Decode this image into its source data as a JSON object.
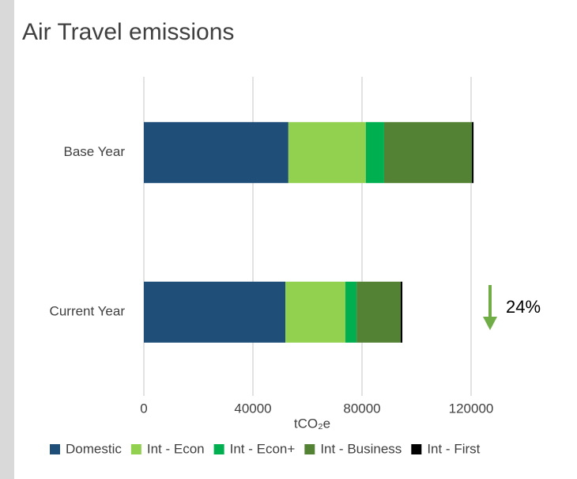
{
  "chart_data": {
    "type": "stacked-barh",
    "title": "Air Travel emissions",
    "categories": [
      "Base Year",
      "Current Year"
    ],
    "series": [
      {
        "name": "Domestic",
        "color": "#1f4e79",
        "values": [
          53000,
          51900
        ]
      },
      {
        "name": "Int - Econ",
        "color": "#92d050",
        "values": [
          28400,
          22000
        ]
      },
      {
        "name": "Int - Econ+",
        "color": "#00b050",
        "values": [
          6700,
          4100
        ]
      },
      {
        "name": "Int - Business",
        "color": "#548235",
        "values": [
          32200,
          16200
        ]
      },
      {
        "name": "Int - First",
        "color": "#000000",
        "values": [
          600,
          600
        ]
      }
    ],
    "xlabel": "tCO₂e",
    "xlim": [
      0,
      120000
    ],
    "xticks": [
      0,
      40000,
      80000,
      120000
    ],
    "grid": true,
    "annotation": "24%",
    "annotation_color": "#70ad47",
    "legend": "bottom"
  }
}
